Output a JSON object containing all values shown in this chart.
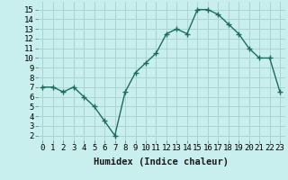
{
  "x": [
    0,
    1,
    2,
    3,
    4,
    5,
    6,
    7,
    8,
    9,
    10,
    11,
    12,
    13,
    14,
    15,
    16,
    17,
    18,
    19,
    20,
    21,
    22,
    23
  ],
  "y": [
    7.0,
    7.0,
    6.5,
    7.0,
    6.0,
    5.0,
    3.5,
    2.0,
    6.5,
    8.5,
    9.5,
    10.5,
    12.5,
    13.0,
    12.5,
    15.0,
    15.0,
    14.5,
    13.5,
    12.5,
    11.0,
    10.0,
    10.0,
    6.5
  ],
  "xlabel": "Humidex (Indice chaleur)",
  "ylim": [
    1.5,
    15.8
  ],
  "xlim": [
    -0.5,
    23.5
  ],
  "yticks": [
    2,
    3,
    4,
    5,
    6,
    7,
    8,
    9,
    10,
    11,
    12,
    13,
    14,
    15
  ],
  "xticks": [
    0,
    1,
    2,
    3,
    4,
    5,
    6,
    7,
    8,
    9,
    10,
    11,
    12,
    13,
    14,
    15,
    16,
    17,
    18,
    19,
    20,
    21,
    22,
    23
  ],
  "line_color": "#1f6b5e",
  "marker": "+",
  "marker_size": 4,
  "marker_lw": 1.0,
  "line_width": 1.0,
  "bg_color": "#c8eeee",
  "grid_color": "#aad4d4",
  "xlabel_fontsize": 7.5,
  "tick_fontsize": 6.5
}
